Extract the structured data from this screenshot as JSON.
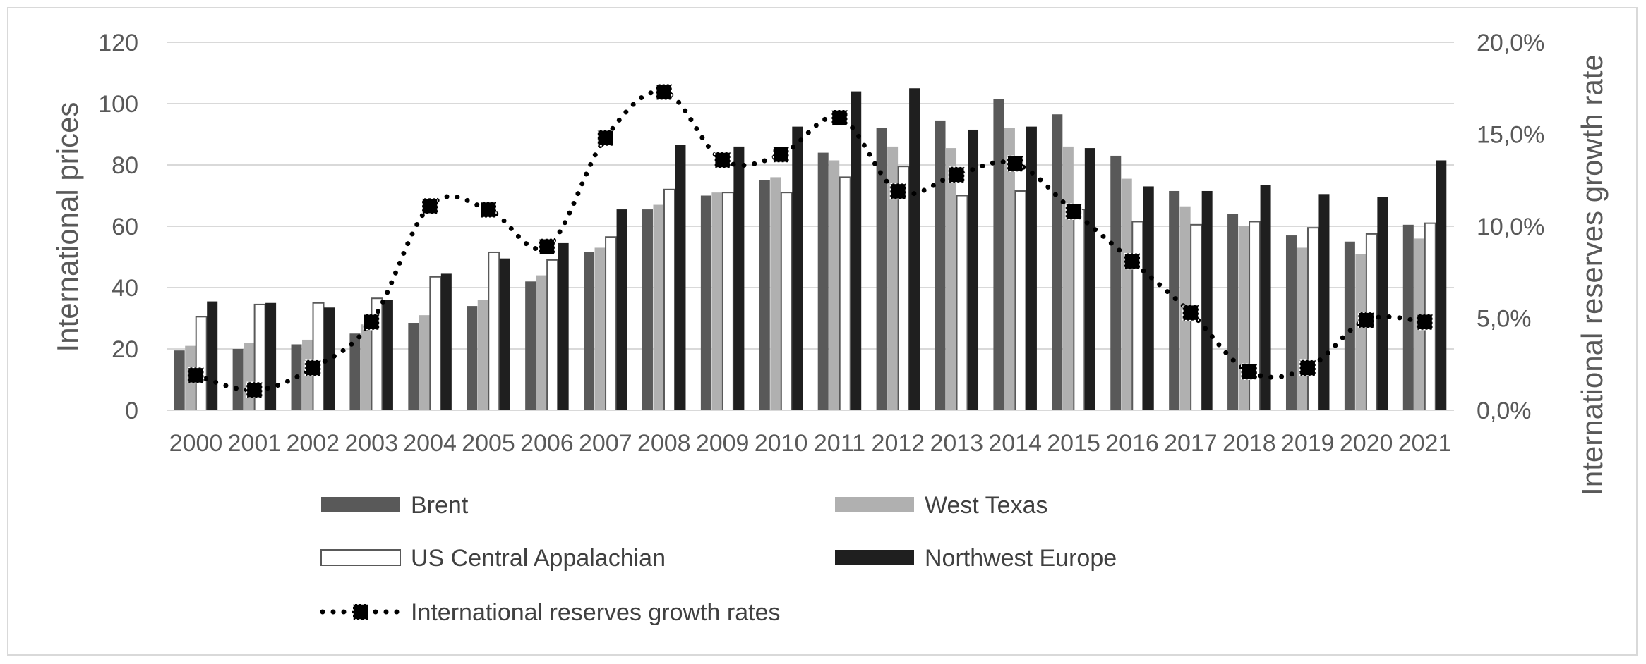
{
  "chart_data": {
    "type": "bar",
    "title": "",
    "categories": [
      "2000",
      "2001",
      "2002",
      "2003",
      "2004",
      "2005",
      "2006",
      "2007",
      "2008",
      "2009",
      "2010",
      "2011",
      "2012",
      "2013",
      "2014",
      "2015",
      "2016",
      "2017",
      "2018",
      "2019",
      "2020",
      "2021"
    ],
    "series": [
      {
        "name": "Brent",
        "kind": "bar",
        "axis": "left",
        "color": "#595959",
        "values": [
          19.5,
          20,
          21.5,
          25,
          28.5,
          34,
          42,
          51.5,
          65.5,
          70,
          75,
          84,
          92,
          94.5,
          101.5,
          96.5,
          83,
          71.5,
          64,
          57,
          55,
          60.5
        ]
      },
      {
        "name": "West Texas",
        "kind": "bar",
        "axis": "left",
        "color": "#b0b0b0",
        "values": [
          21,
          22,
          23,
          28,
          31,
          36,
          44,
          53,
          67,
          71,
          76,
          81.5,
          86,
          85.5,
          92,
          86,
          75.5,
          66.5,
          60,
          53,
          51,
          56
        ]
      },
      {
        "name": "US Central Appalachian",
        "kind": "bar",
        "axis": "left",
        "color": "#ffffff",
        "stroke": "#595959",
        "values": [
          30.5,
          34.5,
          35,
          36.5,
          43.5,
          51.5,
          49,
          56.5,
          72,
          71,
          71,
          76,
          79.5,
          70,
          71.5,
          65.5,
          61.5,
          60.5,
          61.5,
          59.5,
          57.5,
          61
        ]
      },
      {
        "name": "Northwest Europe",
        "kind": "bar",
        "axis": "left",
        "color": "#1f1f1f",
        "values": [
          35.5,
          35,
          33.5,
          36,
          44.5,
          49.5,
          54.5,
          65.5,
          86.5,
          86,
          92.5,
          104,
          105,
          91.5,
          92.5,
          85.5,
          73,
          71.5,
          73.5,
          70.5,
          69.5,
          81.5
        ]
      },
      {
        "name": "International reserves growth rates",
        "kind": "line",
        "axis": "right",
        "color": "#000000",
        "values": [
          1.9,
          1.1,
          2.3,
          4.8,
          11.1,
          10.9,
          8.9,
          14.8,
          17.3,
          13.6,
          13.9,
          15.9,
          11.9,
          12.8,
          13.4,
          10.8,
          8.1,
          5.3,
          2.1,
          2.3,
          4.9,
          4.8
        ]
      }
    ],
    "ylabel": "International prices",
    "ylim": [
      0,
      120
    ],
    "yticks": [
      "0",
      "20",
      "40",
      "60",
      "80",
      "100",
      "120"
    ],
    "y2label": "International reserves growth rate",
    "y2lim": [
      0,
      20
    ],
    "y2ticks": [
      "0,0%",
      "5,0%",
      "10,0%",
      "15,0%",
      "20,0%"
    ],
    "grid": true,
    "legend": [
      {
        "label": "Brent",
        "style": "bar",
        "color": "#595959"
      },
      {
        "label": "West Texas",
        "style": "bar",
        "color": "#b0b0b0"
      },
      {
        "label": "US Central Appalachian",
        "style": "bar",
        "color": "#ffffff",
        "stroke": "#595959"
      },
      {
        "label": "Northwest Europe",
        "style": "bar",
        "color": "#1f1f1f"
      },
      {
        "label": "International reserves growth rates",
        "style": "line-marker",
        "color": "#000000"
      }
    ],
    "legend_position": "bottom"
  }
}
